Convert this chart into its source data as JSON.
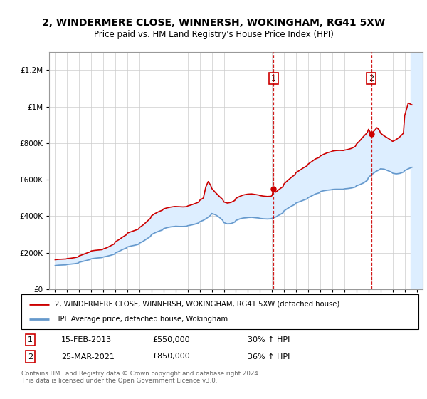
{
  "title": "2, WINDERMERE CLOSE, WINNERSH, WOKINGHAM, RG41 5XW",
  "subtitle": "Price paid vs. HM Land Registry's House Price Index (HPI)",
  "legend_line1": "2, WINDERMERE CLOSE, WINNERSH, WOKINGHAM, RG41 5XW (detached house)",
  "legend_line2": "HPI: Average price, detached house, Wokingham",
  "sale1_date": "15-FEB-2013",
  "sale1_price": "£550,000",
  "sale1_hpi": "30% ↑ HPI",
  "sale2_date": "25-MAR-2021",
  "sale2_price": "£850,000",
  "sale2_hpi": "36% ↑ HPI",
  "footer": "Contains HM Land Registry data © Crown copyright and database right 2024.\nThis data is licensed under the Open Government Licence v3.0.",
  "red_color": "#cc0000",
  "blue_color": "#6699cc",
  "fill_color": "#ddeeff",
  "ylim": [
    0,
    1300000
  ],
  "yticks": [
    0,
    200000,
    400000,
    600000,
    800000,
    1000000,
    1200000
  ],
  "sale1_x": 2013.12,
  "sale1_y": 550000,
  "sale2_x": 2021.23,
  "sale2_y": 850000,
  "hatch_start": 2024.5,
  "xmin": 1994.5,
  "xmax": 2025.5
}
